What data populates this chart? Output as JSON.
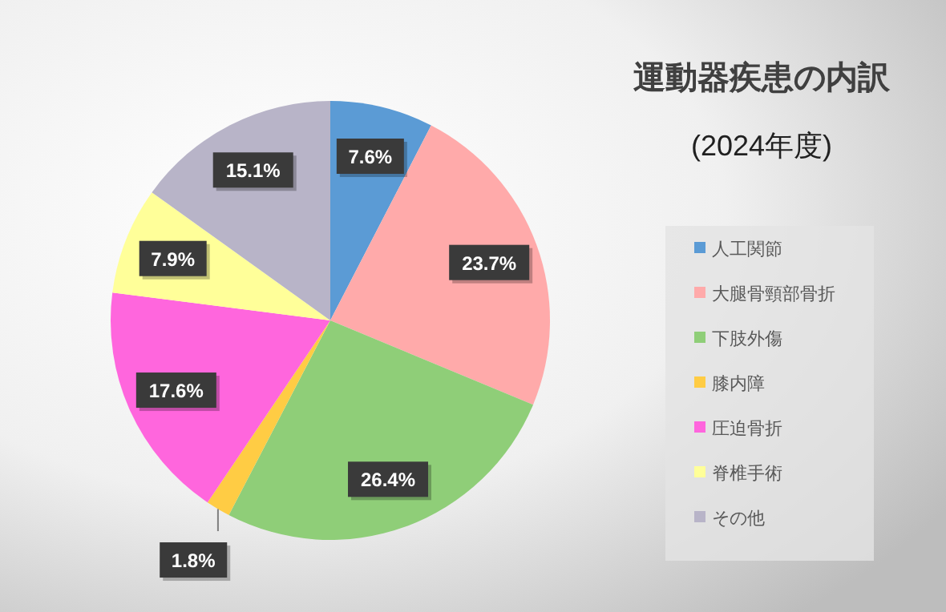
{
  "chart_data": {
    "type": "pie",
    "title": "運動器疾患の内訳",
    "subtitle": "(2024年度)",
    "categories": [
      "人工関節",
      "大腿骨頸部骨折",
      "下肢外傷",
      "膝内障",
      "圧迫骨折",
      "脊椎手術",
      "その他"
    ],
    "values": [
      7.6,
      23.7,
      26.4,
      1.8,
      17.6,
      7.9,
      15.1
    ],
    "colors": [
      "#5b9bd5",
      "#ffaaaa",
      "#8fce78",
      "#ffcc44",
      "#ff66dd",
      "#ffff99",
      "#b8b4c8"
    ],
    "value_labels": [
      "7.6%",
      "23.7%",
      "26.4%",
      "1.8%",
      "17.6%",
      "7.9%",
      "15.1%"
    ],
    "legend": "right"
  }
}
